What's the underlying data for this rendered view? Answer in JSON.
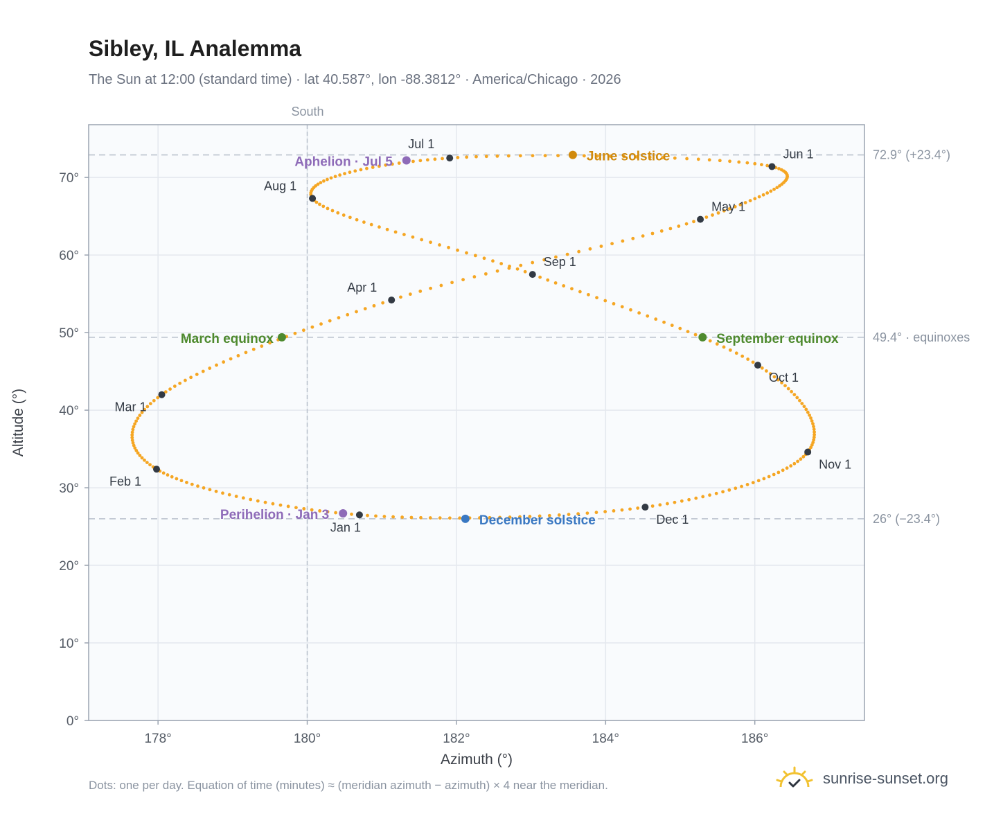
{
  "title": "Sibley, IL Analemma",
  "subtitle": "The Sun at 12:00 (standard time) · lat 40.587°, lon -88.3812° · America/Chicago · 2026",
  "footnote": "Dots: one per day. Equation of time (minutes) ≈ (meridian azimuth − azimuth) × 4 near the meridian.",
  "brand": {
    "text": "sunrise-sunset.org",
    "icon": "sun-logo-icon"
  },
  "colors": {
    "curve": "#f5a623",
    "month_marker": "#333a44",
    "equinox": "#4e8a2e",
    "june_solstice": "#d18a0c",
    "december_solstice": "#3a78c2",
    "apsis": "#8e6bb8",
    "reference_line": "#b8c0cc",
    "plot_background": "#f9fbfd",
    "grid": "#e4e8ee"
  },
  "chart_data": {
    "type": "scatter",
    "title": "Sibley, IL Analemma",
    "xlabel": "Azimuth (°)",
    "ylabel": "Altitude (°)",
    "xlim": [
      177.07,
      187.47
    ],
    "ylim": [
      0,
      76.8
    ],
    "x_ticks": [
      {
        "value": 178,
        "label": "178°"
      },
      {
        "value": 180,
        "label": "180°"
      },
      {
        "value": 182,
        "label": "182°"
      },
      {
        "value": 184,
        "label": "184°"
      },
      {
        "value": 186,
        "label": "186°"
      }
    ],
    "y_ticks": [
      {
        "value": 0,
        "label": "0°"
      },
      {
        "value": 10,
        "label": "10°"
      },
      {
        "value": 20,
        "label": "20°"
      },
      {
        "value": 30,
        "label": "30°"
      },
      {
        "value": 40,
        "label": "40°"
      },
      {
        "value": 50,
        "label": "50°"
      },
      {
        "value": 60,
        "label": "60°"
      },
      {
        "value": 70,
        "label": "70°"
      }
    ],
    "grid": true,
    "meridian": {
      "azimuth": 180,
      "label": "South"
    },
    "reference_lines": [
      {
        "altitude": 72.9,
        "label": "72.9° (+23.4°)"
      },
      {
        "altitude": 49.4,
        "label": "49.4° · equinoxes"
      },
      {
        "altitude": 26.0,
        "label": "26° (−23.4°)"
      }
    ],
    "daily_points": {
      "count": 365,
      "description_key": "one per day"
    },
    "month_markers": [
      {
        "label": "Jan 1",
        "az": 180.7,
        "alt": 26.5
      },
      {
        "label": "Feb 1",
        "az": 177.98,
        "alt": 32.4
      },
      {
        "label": "Mar 1",
        "az": 178.05,
        "alt": 42.0
      },
      {
        "label": "Apr 1",
        "az": 181.13,
        "alt": 54.2
      },
      {
        "label": "May 1",
        "az": 185.27,
        "alt": 64.6
      },
      {
        "label": "Jun 1",
        "az": 186.23,
        "alt": 71.4
      },
      {
        "label": "Jul 1",
        "az": 181.91,
        "alt": 72.5
      },
      {
        "label": "Aug 1",
        "az": 180.07,
        "alt": 67.3
      },
      {
        "label": "Sep 1",
        "az": 183.02,
        "alt": 57.5
      },
      {
        "label": "Oct 1",
        "az": 186.04,
        "alt": 45.8
      },
      {
        "label": "Nov 1",
        "az": 186.71,
        "alt": 34.6
      },
      {
        "label": "Dec 1",
        "az": 184.53,
        "alt": 27.5
      }
    ],
    "events": [
      {
        "label": "March equinox",
        "az": 179.66,
        "alt": 49.4,
        "color_key": "equinox"
      },
      {
        "label": "June solstice",
        "az": 183.56,
        "alt": 72.9,
        "color_key": "june_solstice"
      },
      {
        "label": "September equinox",
        "az": 185.3,
        "alt": 49.4,
        "color_key": "equinox"
      },
      {
        "label": "December solstice",
        "az": 182.12,
        "alt": 26.0,
        "color_key": "december_solstice"
      },
      {
        "label": "Perihelion · Jan 3",
        "az": 180.48,
        "alt": 26.7,
        "color_key": "apsis"
      },
      {
        "label": "Aphelion · Jul 5",
        "az": 181.33,
        "alt": 72.2,
        "color_key": "apsis"
      }
    ]
  }
}
